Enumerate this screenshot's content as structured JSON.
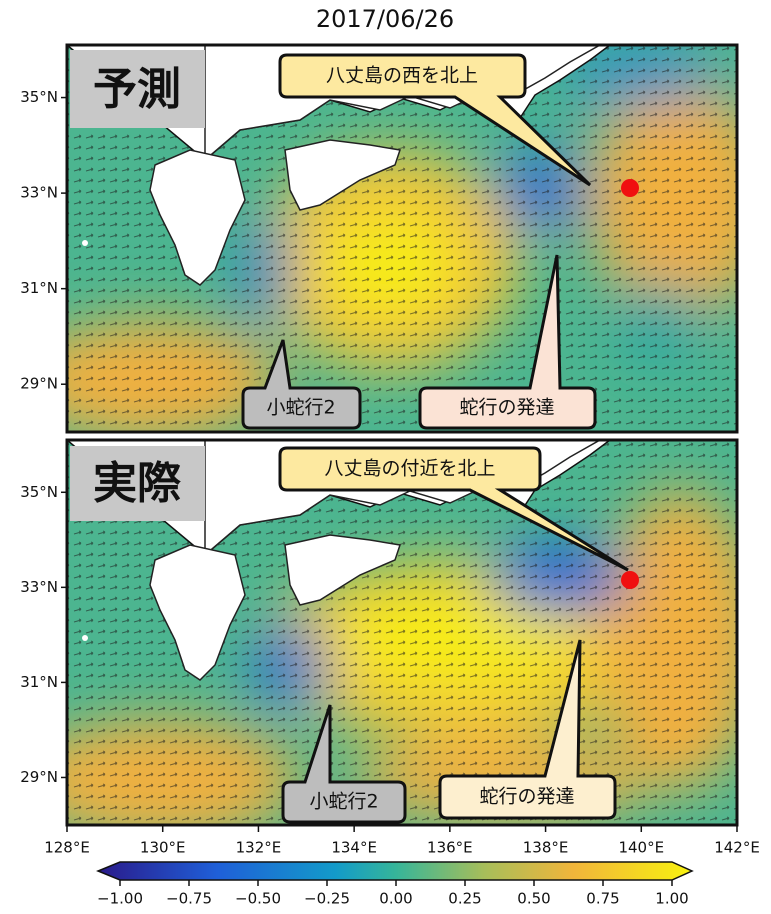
{
  "title": "2017/06/26",
  "xlim": [
    128,
    142
  ],
  "xticks": [
    {
      "value": 128,
      "label": "128°E"
    },
    {
      "value": 130,
      "label": "130°E"
    },
    {
      "value": 132,
      "label": "132°E"
    },
    {
      "value": 134,
      "label": "134°E"
    },
    {
      "value": 136,
      "label": "136°E"
    },
    {
      "value": 138,
      "label": "138°E"
    },
    {
      "value": 140,
      "label": "140°E"
    },
    {
      "value": 142,
      "label": "142°E"
    }
  ],
  "ylim": [
    28,
    36.1
  ],
  "yticks": [
    {
      "value": 29,
      "label": "29°N"
    },
    {
      "value": 31,
      "label": "31°N"
    },
    {
      "value": 33,
      "label": "33°N"
    },
    {
      "value": 35,
      "label": "35°N"
    }
  ],
  "panels": [
    {
      "label": "予測",
      "callouts": [
        "八丈島の西を北上",
        "小蛇行2",
        "蛇行の発達"
      ]
    },
    {
      "label": "実際",
      "callouts": [
        "八丈島の付近を北上",
        "小蛇行2",
        "蛇行の発達"
      ]
    }
  ],
  "colorbar": {
    "lim": [
      -1,
      1
    ],
    "ticks": [
      {
        "value": -1,
        "label": "−1.00"
      },
      {
        "value": -0.75,
        "label": "−0.75"
      },
      {
        "value": -0.5,
        "label": "−0.50"
      },
      {
        "value": -0.25,
        "label": "−0.25"
      },
      {
        "value": 0,
        "label": "0.00"
      },
      {
        "value": 0.25,
        "label": "0.25"
      },
      {
        "value": 0.5,
        "label": "0.50"
      },
      {
        "value": 0.75,
        "label": "0.75"
      },
      {
        "value": 1,
        "label": "1.00"
      }
    ]
  }
}
